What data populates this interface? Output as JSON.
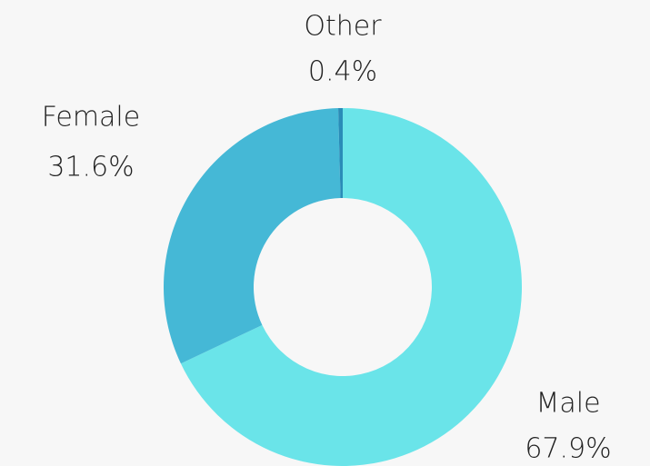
{
  "chart_data": {
    "type": "pie",
    "categories": [
      "Male",
      "Female",
      "Other"
    ],
    "values": [
      67.9,
      31.6,
      0.4
    ],
    "value_labels": [
      "67.9%",
      "31.6%",
      "0.4%"
    ],
    "colors": [
      "#6ae4e9",
      "#45b8d6",
      "#2a8cb8"
    ],
    "donut": true
  }
}
